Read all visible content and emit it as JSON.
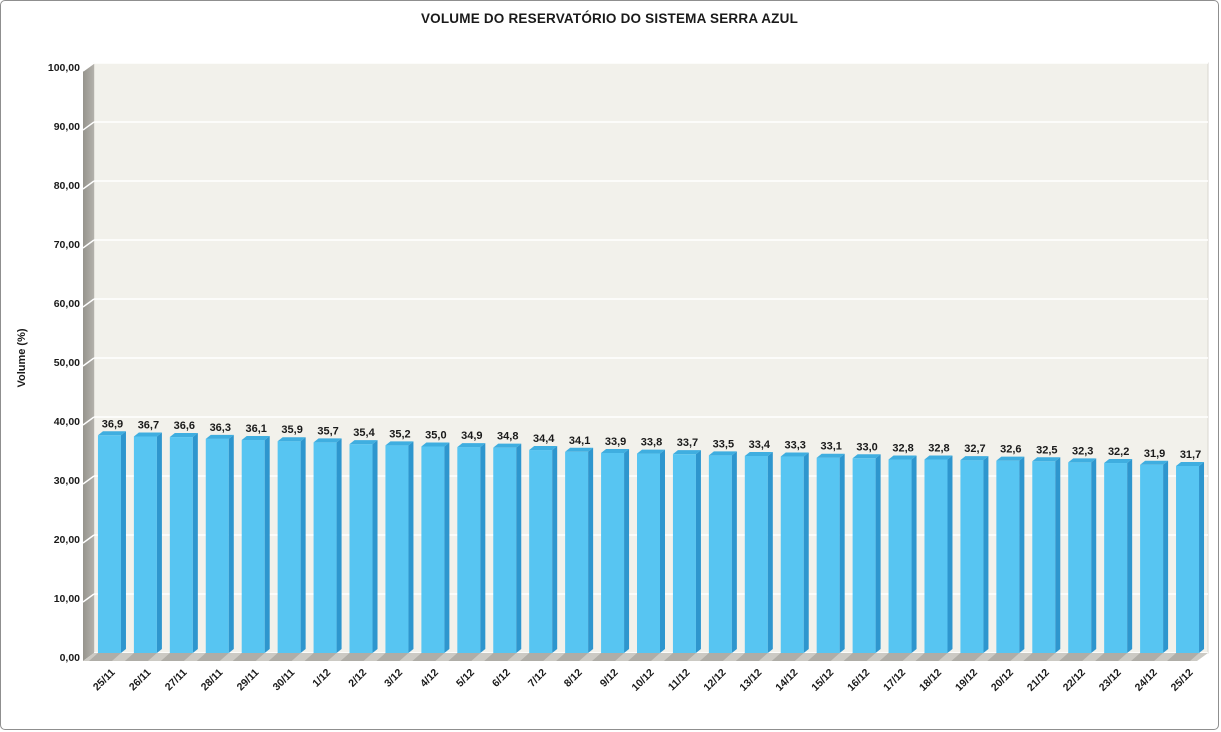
{
  "window": {
    "title": "VOLUME DO RESERVATÓRIO DO SISTEMA SERRA AZUL"
  },
  "chart_data": {
    "type": "bar",
    "title": "VOLUME DO RESERVATÓRIO DO SISTEMA SERRA AZUL",
    "xlabel": "",
    "ylabel": "Volume (%)",
    "ylim": [
      0,
      100
    ],
    "ytick_step": 10,
    "grid": true,
    "legend_position": "none",
    "categories": [
      "25/11",
      "26/11",
      "27/11",
      "28/11",
      "29/11",
      "30/11",
      "1/12",
      "2/12",
      "3/12",
      "4/12",
      "5/12",
      "6/12",
      "7/12",
      "8/12",
      "9/12",
      "10/12",
      "11/12",
      "12/12",
      "13/12",
      "14/12",
      "15/12",
      "16/12",
      "17/12",
      "18/12",
      "19/12",
      "20/12",
      "21/12",
      "22/12",
      "23/12",
      "24/12",
      "25/12"
    ],
    "values": [
      36.9,
      36.7,
      36.6,
      36.3,
      36.1,
      35.9,
      35.7,
      35.4,
      35.2,
      35.0,
      34.9,
      34.8,
      34.4,
      34.1,
      33.9,
      33.8,
      33.7,
      33.5,
      33.4,
      33.3,
      33.1,
      33.0,
      32.8,
      32.8,
      32.7,
      32.6,
      32.5,
      32.3,
      32.2,
      31.9,
      31.7
    ],
    "value_labels": [
      "36,9",
      "36,7",
      "36,6",
      "36,3",
      "36,1",
      "35,9",
      "35,7",
      "35,4",
      "35,2",
      "35,0",
      "34,9",
      "34,8",
      "34,4",
      "34,1",
      "33,9",
      "33,8",
      "33,7",
      "33,5",
      "33,4",
      "33,3",
      "33,1",
      "33,0",
      "32,8",
      "32,8",
      "32,7",
      "32,6",
      "32,5",
      "32,3",
      "32,2",
      "31,9",
      "31,7"
    ],
    "ytick_labels": [
      "100,00",
      "90,00",
      "80,00",
      "70,00",
      "60,00",
      "50,00",
      "40,00",
      "30,00",
      "20,00",
      "10,00",
      "0,00"
    ],
    "colors": {
      "bar_face": "#57C5F2",
      "bar_side": "#2E96CE",
      "bar_top": "#3FAEE0",
      "plot_bg": "#F2F1EB",
      "plot_border": "#D8D6CF",
      "gridline": "#FFFFFF",
      "wall_dark": "#96948D",
      "wall_light": "#B3B1AB",
      "floor": "#CCCAC4",
      "bar_base_shadow": "#AFADA7",
      "text": "#1A1A1A"
    }
  }
}
